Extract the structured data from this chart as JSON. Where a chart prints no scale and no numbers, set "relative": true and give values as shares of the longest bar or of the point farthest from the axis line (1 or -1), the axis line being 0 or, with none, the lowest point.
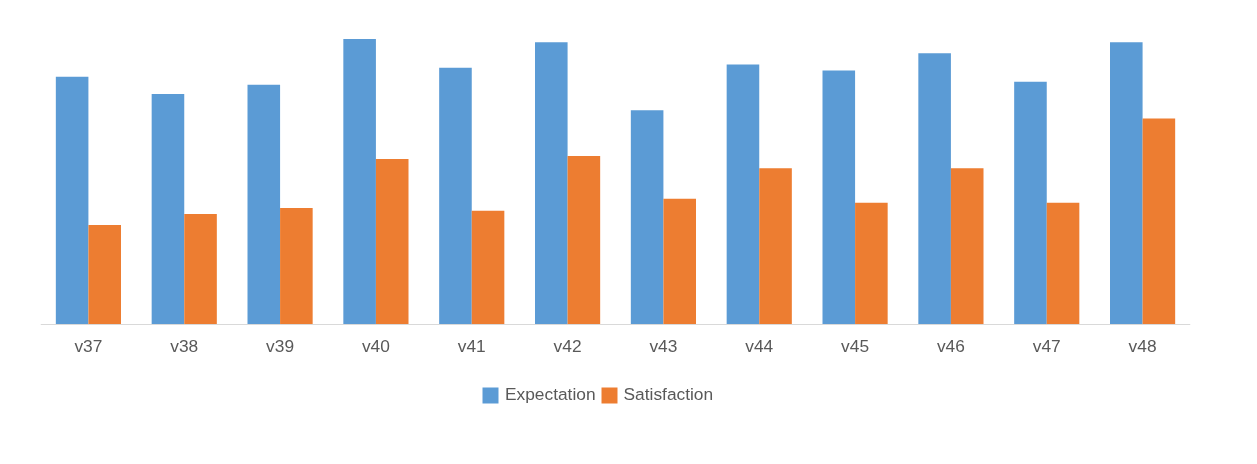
{
  "chart_data": {
    "type": "bar",
    "relative": true,
    "categories": [
      "v37",
      "v38",
      "v39",
      "v40",
      "v41",
      "v42",
      "v43",
      "v44",
      "v45",
      "v46",
      "v47",
      "v48"
    ],
    "series": [
      {
        "name": "Expectation",
        "color": "#5b9bd5",
        "values": [
          0.868,
          0.808,
          0.84,
          1,
          0.9,
          0.989,
          0.751,
          0.911,
          0.89,
          0.95,
          0.851,
          0.989
        ]
      },
      {
        "name": "Satisfaction",
        "color": "#ed7d31",
        "values": [
          0.349,
          0.388,
          0.409,
          0.58,
          0.399,
          0.591,
          0.441,
          0.548,
          0.427,
          0.548,
          0.427,
          0.722
        ]
      }
    ],
    "legend": "bottom"
  }
}
